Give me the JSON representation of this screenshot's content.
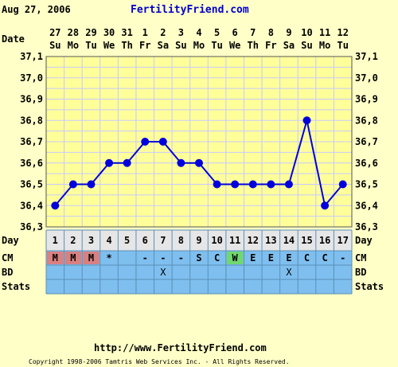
{
  "header": {
    "date": "Aug 27, 2006",
    "site": "FertilityFriend.com",
    "site_color": "#0000CC"
  },
  "footer": {
    "url": "http://www.FertilityFriend.com",
    "copyright": "Copyright 1998-2006 Tamtris Web Services Inc. - All Rights Reserved."
  },
  "row_labels": {
    "date": "Date",
    "day": "Day",
    "cm": "CM",
    "bd": "BD",
    "stats": "Stats"
  },
  "colors": {
    "background": "#FFFFC8",
    "grid_bg": "#FFFF99",
    "grid_line": "#C8C8FF",
    "line": "#0000DD",
    "day_row": "#E6E6E6",
    "info_rows": "#7FBFEF",
    "cm_menstrual": "#D98080",
    "cm_eggwhite": "#70D870"
  },
  "chart_data": {
    "type": "line",
    "title": "",
    "xlabel": "Day",
    "ylabel": "",
    "ylim": [
      36.3,
      37.1
    ],
    "yticks": [
      "37,1",
      "37,0",
      "36,9",
      "36,8",
      "36,7",
      "36,6",
      "36,5",
      "36,4",
      "36,3"
    ],
    "dates": [
      "27",
      "28",
      "29",
      "30",
      "31",
      "1",
      "2",
      "3",
      "4",
      "5",
      "6",
      "7",
      "8",
      "9",
      "10",
      "11",
      "12"
    ],
    "weekdays": [
      "Su",
      "Mo",
      "Tu",
      "We",
      "Th",
      "Fr",
      "Sa",
      "Su",
      "Mo",
      "Tu",
      "We",
      "Th",
      "Fr",
      "Sa",
      "Su",
      "Mo",
      "Tu"
    ],
    "days": [
      "1",
      "2",
      "3",
      "4",
      "5",
      "6",
      "7",
      "8",
      "9",
      "10",
      "11",
      "12",
      "13",
      "14",
      "15",
      "16",
      "17"
    ],
    "temps": [
      36.4,
      36.5,
      36.5,
      36.6,
      36.6,
      36.7,
      36.7,
      36.6,
      36.6,
      36.5,
      36.5,
      36.5,
      36.5,
      36.5,
      36.8,
      36.4,
      36.5
    ],
    "cm": [
      "M",
      "M",
      "M",
      "*",
      "",
      "-",
      "-",
      "-",
      "S",
      "C",
      "W",
      "E",
      "E",
      "E",
      "C",
      "C",
      "-"
    ],
    "bd": [
      "",
      "",
      "",
      "",
      "",
      "",
      "X",
      "",
      "",
      "",
      "",
      "",
      "",
      "X",
      "",
      "",
      ""
    ],
    "stats": [
      "",
      "",
      "",
      "",
      "",
      "",
      "",
      "",
      "",
      "",
      "",
      "",
      "",
      "",
      "",
      "",
      ""
    ]
  }
}
